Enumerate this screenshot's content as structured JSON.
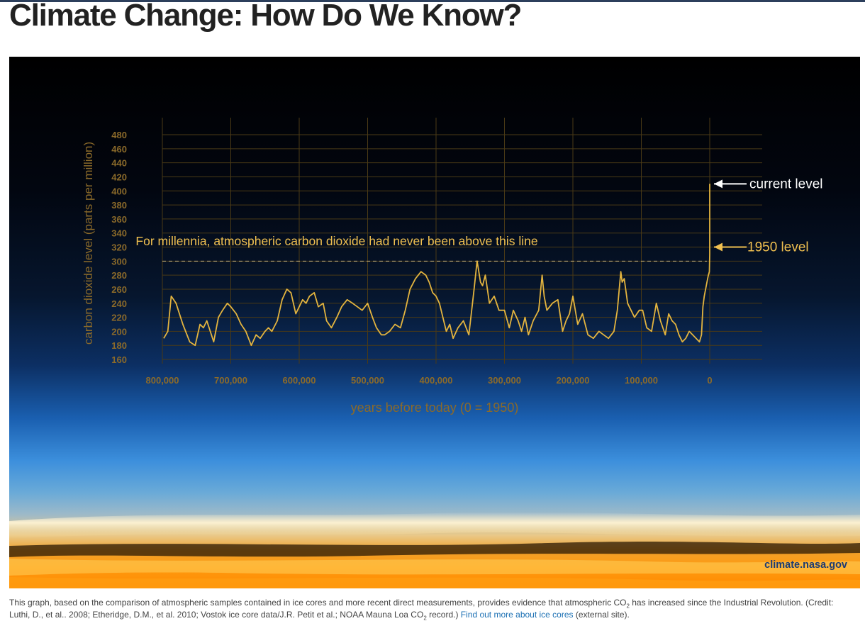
{
  "page": {
    "title": "Climate Change: How Do We Know?"
  },
  "figure": {
    "credit_site": "climate.nasa.gov",
    "colors": {
      "series": "#e3b43f",
      "axis_text": "#8b6a2a",
      "label_text": "#f0c050",
      "annotation_white": "#ffffff",
      "caption_link": "#1a6fb3"
    }
  },
  "chart_data": {
    "type": "line",
    "title": "",
    "xlabel": "years before today (0 = 1950)",
    "ylabel": "carbon dioxide level (parts per million)",
    "xlim": [
      800000,
      0
    ],
    "ylim": [
      160,
      480
    ],
    "x_ticks": [
      800000,
      700000,
      600000,
      500000,
      400000,
      300000,
      200000,
      100000,
      0
    ],
    "x_tick_labels": [
      "800,000",
      "700,000",
      "600,000",
      "500,000",
      "400,000",
      "300,000",
      "200,000",
      "100,000",
      "0"
    ],
    "y_ticks": [
      160,
      180,
      200,
      220,
      240,
      260,
      280,
      300,
      320,
      340,
      360,
      380,
      400,
      420,
      440,
      460,
      480
    ],
    "y_tick_labels": [
      "160",
      "180",
      "200",
      "220",
      "240",
      "260",
      "280",
      "300",
      "320",
      "340",
      "360",
      "380",
      "400",
      "420",
      "440",
      "460",
      "480"
    ],
    "grid": true,
    "series": [
      {
        "name": "CO2 concentration",
        "x": [
          798000,
          792000,
          787000,
          780000,
          770000,
          760000,
          752000,
          745000,
          740000,
          735000,
          725000,
          718000,
          712000,
          705000,
          700000,
          692000,
          685000,
          678000,
          670000,
          663000,
          657000,
          650000,
          645000,
          640000,
          632000,
          625000,
          618000,
          612000,
          605000,
          600000,
          595000,
          590000,
          585000,
          578000,
          572000,
          565000,
          560000,
          553000,
          545000,
          538000,
          530000,
          522000,
          515000,
          508000,
          500000,
          493000,
          487000,
          480000,
          475000,
          468000,
          460000,
          452000,
          445000,
          438000,
          430000,
          422000,
          415000,
          410000,
          405000,
          400000,
          395000,
          390000,
          385000,
          380000,
          375000,
          368000,
          360000,
          352000,
          345000,
          340000,
          335000,
          332000,
          328000,
          322000,
          315000,
          308000,
          300000,
          293000,
          287000,
          280000,
          275000,
          270000,
          265000,
          258000,
          250000,
          245000,
          242000,
          238000,
          230000,
          222000,
          215000,
          210000,
          205000,
          200000,
          193000,
          186000,
          178000,
          170000,
          162000,
          155000,
          148000,
          140000,
          135000,
          130000,
          128000,
          125000,
          120000,
          115000,
          110000,
          103000,
          98000,
          92000,
          85000,
          78000,
          72000,
          65000,
          60000,
          55000,
          50000,
          45000,
          40000,
          35000,
          30000,
          25000,
          20000,
          15000,
          12000,
          10000,
          8000,
          6000,
          4000,
          2000,
          500,
          0,
          0
        ],
        "values": [
          190,
          200,
          250,
          240,
          210,
          185,
          180,
          210,
          205,
          215,
          185,
          220,
          230,
          240,
          235,
          225,
          210,
          200,
          180,
          195,
          190,
          200,
          205,
          200,
          215,
          245,
          260,
          255,
          225,
          235,
          245,
          240,
          250,
          255,
          235,
          240,
          215,
          205,
          220,
          235,
          245,
          240,
          235,
          230,
          240,
          220,
          205,
          195,
          195,
          200,
          210,
          205,
          230,
          260,
          275,
          285,
          280,
          270,
          255,
          250,
          240,
          220,
          200,
          210,
          190,
          205,
          215,
          195,
          255,
          300,
          270,
          265,
          280,
          240,
          250,
          230,
          230,
          205,
          230,
          215,
          200,
          220,
          195,
          215,
          230,
          280,
          250,
          230,
          240,
          245,
          200,
          215,
          225,
          250,
          210,
          225,
          195,
          190,
          200,
          195,
          190,
          200,
          230,
          285,
          270,
          275,
          240,
          230,
          220,
          230,
          230,
          205,
          200,
          240,
          215,
          195,
          225,
          215,
          210,
          195,
          185,
          190,
          200,
          195,
          190,
          185,
          195,
          235,
          250,
          260,
          270,
          280,
          285,
          310,
          410
        ]
      }
    ],
    "annotations": [
      {
        "text": "For millennia, atmospheric carbon dioxide had never been above this line",
        "at_value": 300
      },
      {
        "text": "current level",
        "at_value": 410
      },
      {
        "text": "1950 level",
        "at_value": 310
      }
    ]
  },
  "caption": {
    "text_part1": "This graph, based on the comparison of atmospheric samples contained in ice cores and more recent direct measurements, provides evidence that atmospheric CO",
    "sub1": "2",
    "text_part2": " has increased since the Industrial Revolution. (Credit: Luthi, D., et al.. 2008; Etheridge, D.M., et al. 2010; Vostok ice core data/J.R. Petit et al.; NOAA Mauna Loa CO",
    "sub2": "2",
    "text_part3": " record.) ",
    "link_text": "Find out more about ice cores",
    "text_part4": " (external site)."
  }
}
